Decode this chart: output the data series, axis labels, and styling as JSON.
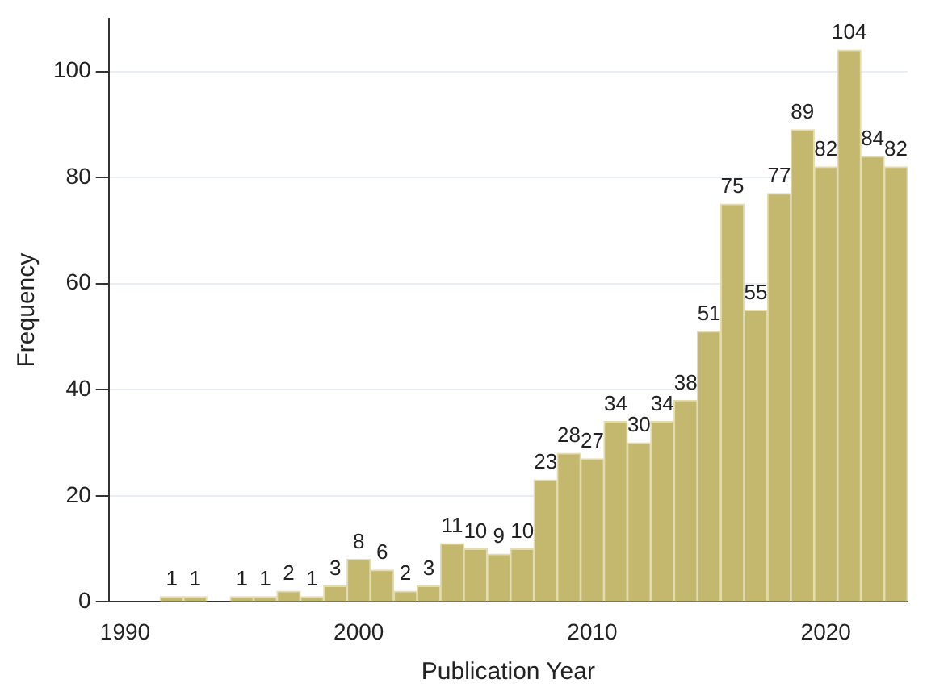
{
  "chart_data": {
    "type": "histogram",
    "xlabel": "Publication Year",
    "ylabel": "Frequency",
    "bins": [
      1991.5,
      1992.5,
      1993.5,
      1994.5,
      1995.5,
      1996.5,
      1997.5,
      1998.5,
      1999.5,
      2000.5,
      2001.5,
      2002.5,
      2003.5,
      2004.5,
      2005.5,
      2006.5,
      2007.5,
      2008.5,
      2009.5,
      2010.5,
      2011.5,
      2012.5,
      2013.5,
      2014.5,
      2015.5,
      2016.5,
      2017.5,
      2018.5,
      2019.5,
      2020.5,
      2021.5,
      2022.5,
      2023.5
    ],
    "values": [
      1,
      1,
      0,
      1,
      1,
      2,
      1,
      3,
      8,
      6,
      2,
      3,
      11,
      10,
      9,
      10,
      23,
      28,
      27,
      34,
      30,
      34,
      38,
      51,
      75,
      55,
      77,
      89,
      82,
      104,
      84,
      82
    ],
    "value_labels": [
      "1",
      "1",
      null,
      "1",
      "1",
      "2",
      "1",
      "3",
      "8",
      "6",
      "2",
      "3",
      "11",
      "10",
      "9",
      "10",
      "23",
      "28",
      "27",
      "34",
      "30",
      "34",
      "38",
      "51",
      "75",
      "55",
      "77",
      "89",
      "82",
      "104",
      "84",
      "82"
    ],
    "color": "#c4b86e",
    "xlim": [
      1989.3,
      2023.5
    ],
    "xticks": [
      1990,
      2000,
      2010,
      2020
    ],
    "ylim": [
      0,
      110
    ],
    "yticks": [
      0,
      20,
      40,
      60,
      80,
      100
    ],
    "grid": "y",
    "legend": false
  }
}
